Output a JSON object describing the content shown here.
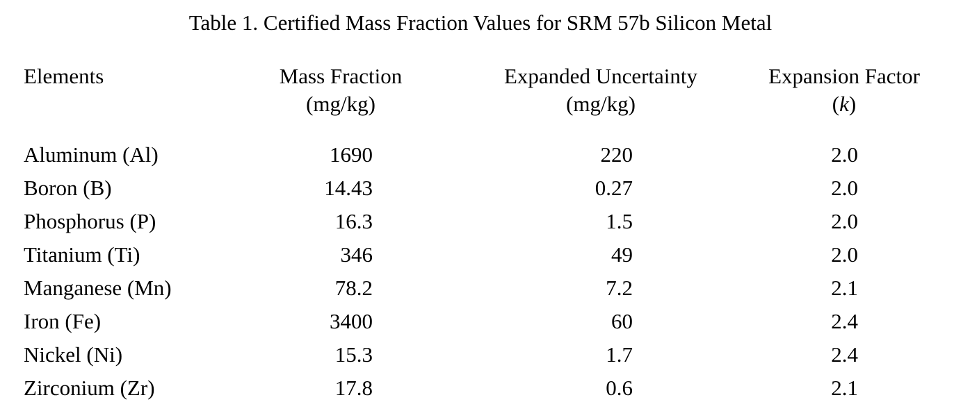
{
  "table": {
    "title": "Table 1.  Certified Mass Fraction Values for SRM 57b Silicon Metal",
    "headers": {
      "elements": "Elements",
      "mass_fraction": {
        "line1": "Mass Fraction",
        "line2": "(mg/kg)"
      },
      "expanded_uncertainty": {
        "line1": "Expanded Uncertainty",
        "line2": "(mg/kg)"
      },
      "expansion_factor": {
        "line1": "Expansion Factor",
        "line2_open": "(",
        "line2_k": "k",
        "line2_close": ")"
      }
    },
    "rows": [
      {
        "element": "Aluminum (Al)",
        "mass_fraction": "1690",
        "uncertainty": "220",
        "factor": "2.0"
      },
      {
        "element": "Boron (B)",
        "mass_fraction": "14.43",
        "uncertainty": "0.27",
        "factor": "2.0"
      },
      {
        "element": "Phosphorus (P)",
        "mass_fraction": "16.3",
        "uncertainty": "1.5",
        "factor": "2.0"
      },
      {
        "element": "Titanium (Ti)",
        "mass_fraction": "346",
        "uncertainty": "49",
        "factor": "2.0"
      },
      {
        "element": "Manganese (Mn)",
        "mass_fraction": "78.2",
        "uncertainty": "7.2",
        "factor": "2.1"
      },
      {
        "element": "Iron (Fe)",
        "mass_fraction": "3400",
        "uncertainty": "60",
        "factor": "2.4"
      },
      {
        "element": "Nickel (Ni)",
        "mass_fraction": "15.3",
        "uncertainty": "1.7",
        "factor": "2.4"
      },
      {
        "element": "Zirconium (Zr)",
        "mass_fraction": "17.8",
        "uncertainty": "0.6",
        "factor": "2.1"
      }
    ]
  }
}
